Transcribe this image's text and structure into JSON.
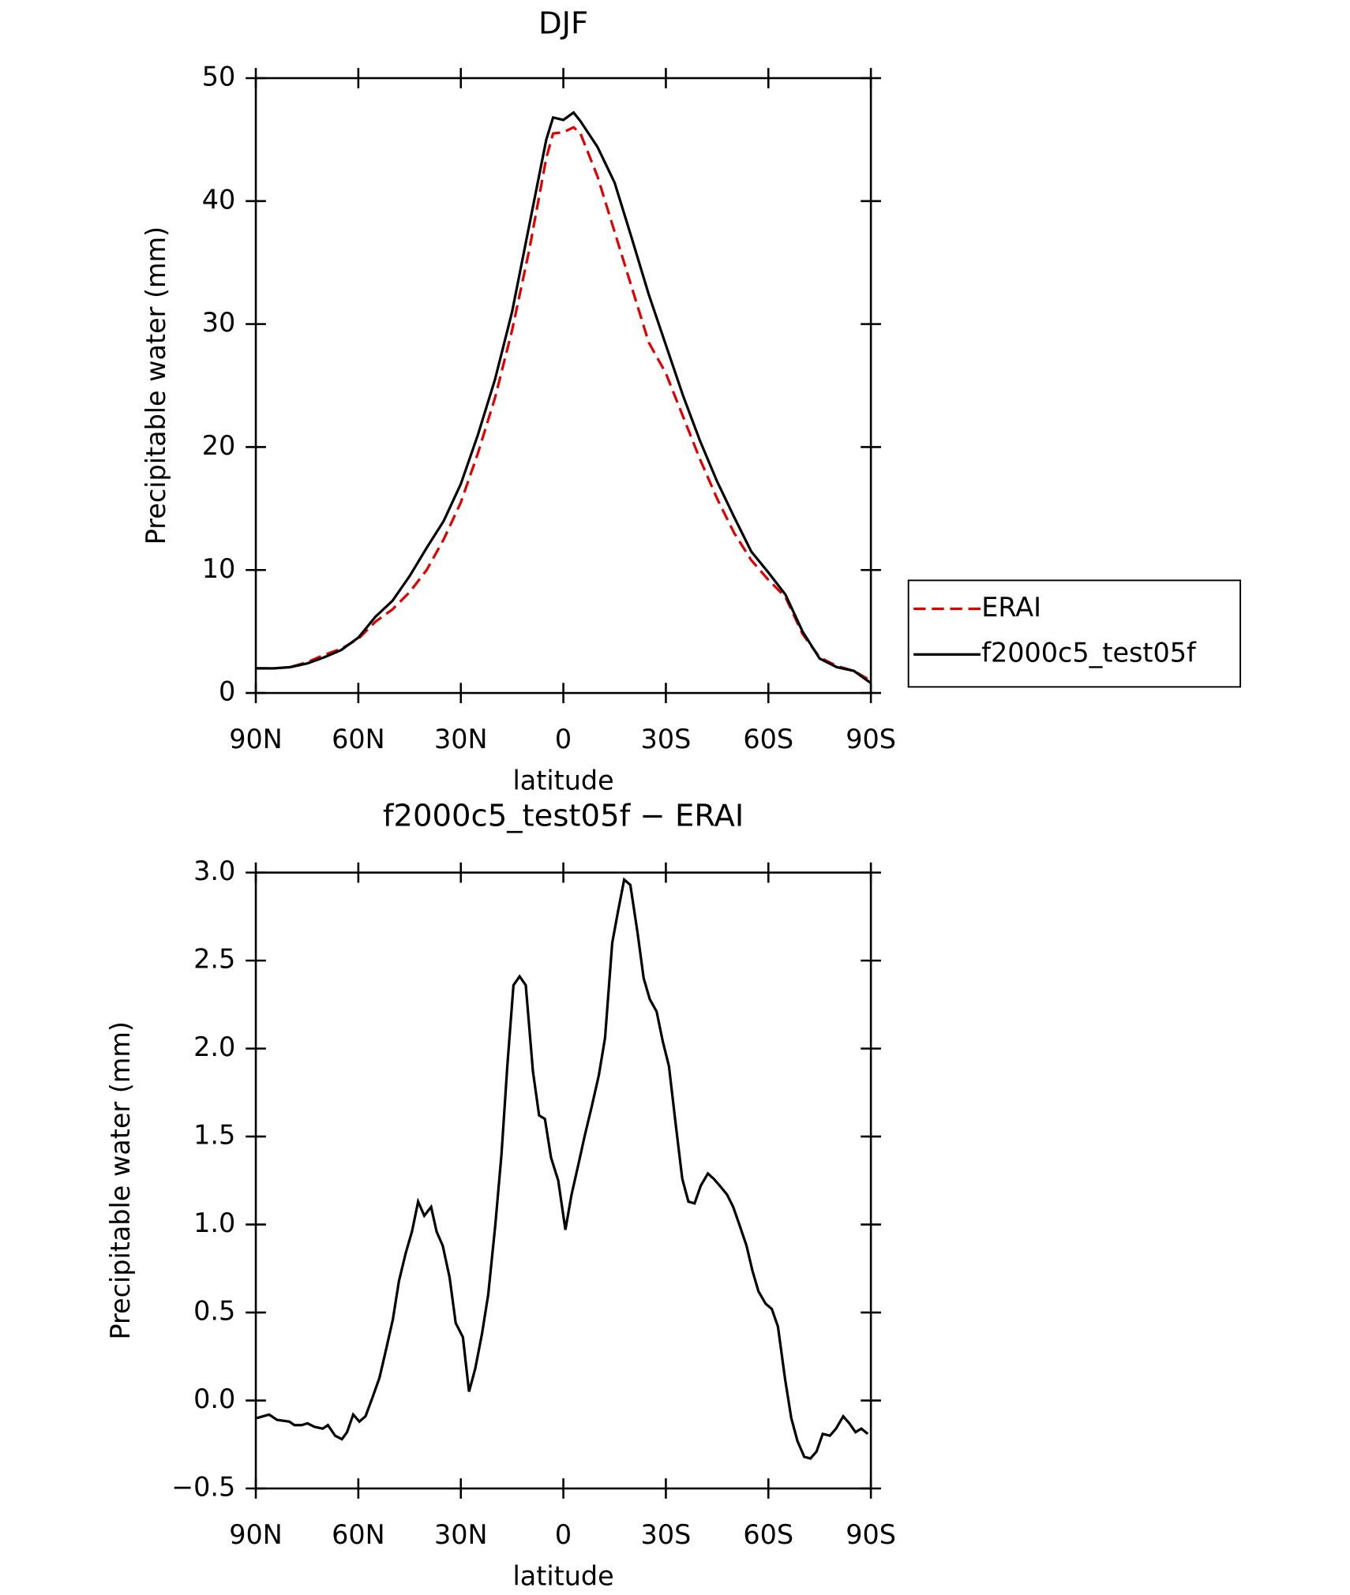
{
  "chart_data": [
    {
      "type": "line",
      "title": "DJF",
      "x_label": "latitude",
      "y_label": "Precipitable water (mm)",
      "x": [
        90,
        85,
        80,
        75,
        70,
        65,
        60,
        55,
        50,
        45,
        40,
        35,
        30,
        25,
        20,
        15,
        10,
        5,
        3,
        0,
        -3,
        -5,
        -10,
        -15,
        -20,
        -25,
        -30,
        -35,
        -40,
        -45,
        -50,
        -55,
        -60,
        -65,
        -70,
        -75,
        -80,
        -85,
        -90
      ],
      "series": [
        {
          "name": "ERAI",
          "color": "#e00000",
          "dashed": true,
          "values": [
            2.0,
            2.0,
            2.1,
            2.5,
            3.1,
            3.6,
            4.4,
            5.8,
            6.8,
            8.2,
            10.0,
            12.5,
            15.5,
            19.5,
            24,
            29.5,
            36,
            43.5,
            45.5,
            45.6,
            46,
            45.5,
            42,
            37.5,
            33,
            28.5,
            26,
            22.5,
            19,
            15.8,
            13,
            10.8,
            9.2,
            7.8,
            4.8,
            2.9,
            2.2,
            1.8,
            1.0
          ]
        },
        {
          "name": "f2000c5_test05f",
          "color": "#000000",
          "dashed": false,
          "values": [
            2.0,
            2.0,
            2.1,
            2.4,
            2.9,
            3.5,
            4.5,
            6.2,
            7.5,
            9.5,
            11.8,
            14,
            17,
            21,
            25.5,
            31,
            38,
            45,
            46.8,
            46.6,
            47.2,
            46.5,
            44.4,
            41.5,
            37,
            32.4,
            28.3,
            24.2,
            20.5,
            17.2,
            14.3,
            11.5,
            9.8,
            8,
            5,
            2.8,
            2.1,
            1.8,
            0.8
          ]
        }
      ],
      "xlim": [
        90,
        -90
      ],
      "xticks": [
        {
          "value": 90,
          "label": "90N"
        },
        {
          "value": 60,
          "label": "60N"
        },
        {
          "value": 30,
          "label": "30N"
        },
        0,
        {
          "value": -30,
          "label": "30S"
        },
        {
          "value": -60,
          "label": "60S"
        },
        {
          "value": -90,
          "label": "90S"
        }
      ],
      "ylim": [
        0,
        50
      ],
      "yticks": [
        0,
        10,
        20,
        30,
        40,
        50
      ],
      "legend": "outside-right"
    },
    {
      "type": "line",
      "title": "f2000c5_test05f − ERAI",
      "x_label": "latitude",
      "y_label": "Precipitable water (mm)",
      "x": [
        89.7,
        86.1,
        83.8,
        80.2,
        78.7,
        76.6,
        74.9,
        72.8,
        70.4,
        68.9,
        66.8,
        64.8,
        63.3,
        61.5,
        59.7,
        57.9,
        55.8,
        53.8,
        52.0,
        49.9,
        48.1,
        46.1,
        44.3,
        42.5,
        40.7,
        38.7,
        37.1,
        35.3,
        33.3,
        31.5,
        29.4,
        27.6,
        25.8,
        23.8,
        22.0,
        19.9,
        18.1,
        16.4,
        14.6,
        12.8,
        11.0,
        8.9,
        7.1,
        5.4,
        3.6,
        1.5,
        -0.6,
        -2.4,
        -4.5,
        -6.2,
        -8.3,
        -10.4,
        -12.2,
        -14.3,
        -16.0,
        -17.8,
        -19.6,
        -21.7,
        -23.5,
        -25.3,
        -27.3,
        -29.1,
        -30.9,
        -33.0,
        -34.8,
        -36.6,
        -38.4,
        -40.2,
        -42.3,
        -44.0,
        -45.8,
        -47.9,
        -49.7,
        -51.5,
        -53.6,
        -55.3,
        -57.1,
        -59.2,
        -61.0,
        -62.8,
        -64.9,
        -66.7,
        -68.5,
        -70.5,
        -72.3,
        -74.1,
        -75.9,
        -78.0,
        -79.8,
        -81.9,
        -83.7,
        -85.5,
        -87.2,
        -89.1
      ],
      "series": [
        {
          "color": "#000000",
          "dashed": false,
          "values": [
            -0.1,
            -0.08,
            -0.11,
            -0.12,
            -0.14,
            -0.14,
            -0.13,
            -0.15,
            -0.16,
            -0.14,
            -0.2,
            -0.22,
            -0.18,
            -0.08,
            -0.12,
            -0.09,
            0.02,
            0.13,
            0.28,
            0.46,
            0.68,
            0.84,
            0.96,
            1.13,
            1.05,
            1.1,
            0.96,
            0.88,
            0.7,
            0.44,
            0.36,
            0.05,
            0.18,
            0.38,
            0.6,
            1.0,
            1.4,
            1.9,
            2.36,
            2.41,
            2.36,
            1.87,
            1.62,
            1.6,
            1.38,
            1.25,
            0.97,
            1.17,
            1.35,
            1.5,
            1.67,
            1.85,
            2.06,
            2.6,
            2.78,
            2.96,
            2.93,
            2.66,
            2.4,
            2.28,
            2.21,
            2.04,
            1.9,
            1.55,
            1.26,
            1.13,
            1.12,
            1.22,
            1.29,
            1.26,
            1.22,
            1.17,
            1.1,
            1.0,
            0.88,
            0.74,
            0.62,
            0.55,
            0.52,
            0.42,
            0.12,
            -0.1,
            -0.23,
            -0.32,
            -0.33,
            -0.29,
            -0.19,
            -0.2,
            -0.16,
            -0.09,
            -0.13,
            -0.18,
            -0.16,
            -0.19
          ]
        }
      ],
      "xlim": [
        90,
        -90
      ],
      "xticks": [
        {
          "value": 90,
          "label": "90N"
        },
        {
          "value": 60,
          "label": "60N"
        },
        {
          "value": 30,
          "label": "30N"
        },
        0,
        {
          "value": -30,
          "label": "30S"
        },
        {
          "value": -60,
          "label": "60S"
        },
        {
          "value": -90,
          "label": "90S"
        }
      ],
      "ylim": [
        -0.5,
        3
      ],
      "yticks": [
        {
          "value": -0.5,
          "label": "−0.5"
        },
        {
          "value": 0,
          "label": "0.0"
        },
        {
          "value": 0.5,
          "label": "0.5"
        },
        {
          "value": 1,
          "label": "1.0"
        },
        {
          "value": 1.5,
          "label": "1.5"
        },
        {
          "value": 2,
          "label": "2.0"
        },
        {
          "value": 2.5,
          "label": "2.5"
        },
        {
          "value": 3,
          "label": "3.0"
        }
      ]
    }
  ]
}
